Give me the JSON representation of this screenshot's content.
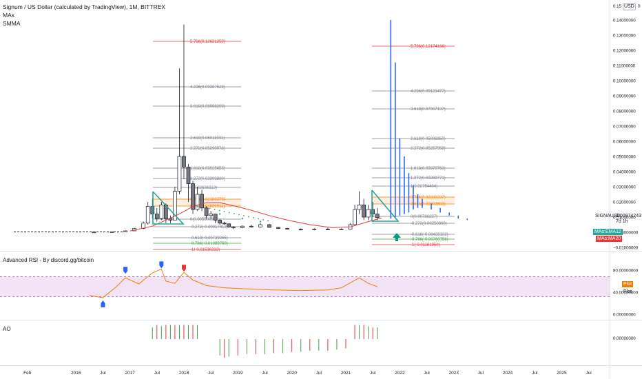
{
  "header": {
    "symbol_line": "Signum / US Dollar (calculated by TradingView), 1M, BITTREX",
    "indicators": [
      "MAs",
      "SMMA"
    ],
    "currency_badge": "USD"
  },
  "price_axis": {
    "top_partial": "0.15",
    "top_suffix": "0",
    "ticks": [
      "0.14000000",
      "0.13000000",
      "0.12000000",
      "0.11000000",
      "0.10000000",
      "0.09000000",
      "0.08000000",
      "0.07000000",
      "0.06000000",
      "0.05000000",
      "0.04000000",
      "0.03000000",
      "0.02000000",
      "0.01000000",
      "−0.00000000",
      "−0.01000000"
    ],
    "symbol_tag": "SIGNAUSD",
    "last_price": "0.00974243",
    "countdown": "7d 1h",
    "ema_tag": "MAs:EMA12",
    "ma_tag": "MAs:MA20"
  },
  "fib_left": {
    "levels": [
      {
        "label": "5.786(0.12621259)",
        "color": "#e53935"
      },
      {
        "label": "4.236(0.09387528)",
        "color": "#787b86"
      },
      {
        "label": "3.618(0.08098209)",
        "color": "#787b86"
      },
      {
        "label": "2.618(0.06011931)",
        "color": "#787b86"
      },
      {
        "label": "2.272(0.05290078)",
        "color": "#787b86"
      },
      {
        "label": "1.618(0.03925653)",
        "color": "#787b86"
      },
      {
        "label": "1.272(0.03203800)",
        "color": "#787b86"
      },
      {
        "label": "1(0.02636313)",
        "color": "#787b86"
      },
      {
        "label": "0.786(0.02190375)",
        "color": "#f57c00"
      },
      {
        "label": "0.618(0.01839911)",
        "color": "#f57c00"
      },
      {
        "label": "0(0.00550095)",
        "color": "#787b86"
      },
      {
        "label": "-0.272(-0.00017413)",
        "color": "#787b86"
      },
      {
        "label": "-0.618(-0.00739265)",
        "color": "#787b86"
      },
      {
        "label": "-0.786(-0.01089760)",
        "color": "#43a047"
      },
      {
        "label": "-1(-0.01536233)",
        "color": "#e53935"
      }
    ]
  },
  "fib_right": {
    "levels": [
      {
        "label": "5.786(0.12174166)",
        "color": "#e53935"
      },
      {
        "label": "4.236(0.09123477)",
        "color": "#787b86"
      },
      {
        "label": "3.618(0.07907137)",
        "color": "#787b86"
      },
      {
        "label": "2.618(0.05938950)",
        "color": "#787b86"
      },
      {
        "label": "2.272(0.05257958)",
        "color": "#787b86"
      },
      {
        "label": "1.618(0.03970763)",
        "color": "#787b86"
      },
      {
        "label": "1.272(0.03289771)",
        "color": "#787b86"
      },
      {
        "label": "1(0.02754404)",
        "color": "#787b86"
      },
      {
        "label": "0.786(0.02333237)",
        "color": "#f57c00"
      },
      {
        "label": "0.618(0.02002583)",
        "color": "#f57c00"
      },
      {
        "label": "0(0.00786237)",
        "color": "#787b86"
      },
      {
        "label": "-0.272(0.00250890)",
        "color": "#787b86"
      },
      {
        "label": "-0.618(-0.00430102)",
        "color": "#787b86"
      },
      {
        "label": "-0.786(-0.00760756)",
        "color": "#43a047"
      },
      {
        "label": "-1(-0.01181950)",
        "color": "#e53935"
      }
    ]
  },
  "rsi_pane": {
    "title": "Advanced RSI - By discord.gg/bitcoin",
    "ticks": [
      "80.00000000",
      "40.00000000",
      "0.00000000"
    ],
    "plot_tag": "Plot",
    "plot_label": "Plot",
    "band_color": "#e1bee7"
  },
  "ao_pane": {
    "title": "AO",
    "ticks": [
      "0.00000000"
    ]
  },
  "time_axis": {
    "labels": [
      "Feb",
      "2016",
      "Jul",
      "2017",
      "Jul",
      "2018",
      "Jul",
      "2019",
      "Jul",
      "2020",
      "Jul",
      "2021",
      "Jul",
      "2022",
      "Jul",
      "2023",
      "Jul",
      "2024",
      "Jul",
      "2025",
      "Jul"
    ]
  },
  "colors": {
    "up": "#ffffff",
    "down": "#787b86",
    "ma": "#e53935",
    "ema": "#26a69a",
    "blue": "#2962ff",
    "rsi": "#f57c00",
    "ao_up": "#43a047",
    "ao_down": "#e53935"
  },
  "chart_data": {
    "type": "candlestick",
    "title": "Signum / US Dollar (calculated by TradingView), 1M, BITTREX",
    "xlabel": "",
    "ylabel": "USD",
    "ylim": [
      -0.012,
      0.15
    ],
    "x_ticks": [
      "Feb",
      "2016",
      "Jul",
      "2017",
      "Jul",
      "2018",
      "Jul",
      "2019",
      "Jul",
      "2020",
      "Jul",
      "2021",
      "Jul",
      "2022",
      "Jul",
      "2023",
      "Jul",
      "2024",
      "Jul",
      "2025",
      "Jul"
    ],
    "candles": [
      {
        "t": "2016-05",
        "o": 0.0001,
        "h": 0.0002,
        "l": 0.0001,
        "c": 0.0001
      },
      {
        "t": "2016-09",
        "o": 0.0001,
        "h": 0.0005,
        "l": 0.0001,
        "c": 0.0003
      },
      {
        "t": "2016-12",
        "o": 0.0003,
        "h": 0.0012,
        "l": 0.0002,
        "c": 0.0009
      },
      {
        "t": "2017-02",
        "o": 0.0009,
        "h": 0.003,
        "l": 0.0008,
        "c": 0.0025
      },
      {
        "t": "2017-04",
        "o": 0.0025,
        "h": 0.007,
        "l": 0.002,
        "c": 0.006
      },
      {
        "t": "2017-05",
        "o": 0.006,
        "h": 0.02,
        "l": 0.005,
        "c": 0.017
      },
      {
        "t": "2017-06",
        "o": 0.017,
        "h": 0.022,
        "l": 0.009,
        "c": 0.012
      },
      {
        "t": "2017-07",
        "o": 0.012,
        "h": 0.016,
        "l": 0.007,
        "c": 0.009
      },
      {
        "t": "2017-08",
        "o": 0.009,
        "h": 0.02,
        "l": 0.008,
        "c": 0.018
      },
      {
        "t": "2017-09",
        "o": 0.018,
        "h": 0.019,
        "l": 0.006,
        "c": 0.009
      },
      {
        "t": "2017-10",
        "o": 0.009,
        "h": 0.011,
        "l": 0.006,
        "c": 0.008
      },
      {
        "t": "2017-11",
        "o": 0.008,
        "h": 0.03,
        "l": 0.008,
        "c": 0.027
      },
      {
        "t": "2017-12",
        "o": 0.027,
        "h": 0.108,
        "l": 0.025,
        "c": 0.05
      },
      {
        "t": "2018-01",
        "o": 0.05,
        "h": 0.137,
        "l": 0.035,
        "c": 0.043
      },
      {
        "t": "2018-02",
        "o": 0.043,
        "h": 0.045,
        "l": 0.02,
        "c": 0.032
      },
      {
        "t": "2018-03",
        "o": 0.032,
        "h": 0.034,
        "l": 0.012,
        "c": 0.015
      },
      {
        "t": "2018-04",
        "o": 0.015,
        "h": 0.03,
        "l": 0.014,
        "c": 0.025
      },
      {
        "t": "2018-05",
        "o": 0.025,
        "h": 0.028,
        "l": 0.014,
        "c": 0.016
      },
      {
        "t": "2018-06",
        "o": 0.016,
        "h": 0.017,
        "l": 0.009,
        "c": 0.011
      },
      {
        "t": "2018-07",
        "o": 0.011,
        "h": 0.014,
        "l": 0.009,
        "c": 0.012
      },
      {
        "t": "2018-08",
        "o": 0.012,
        "h": 0.012,
        "l": 0.006,
        "c": 0.008
      },
      {
        "t": "2018-09",
        "o": 0.008,
        "h": 0.009,
        "l": 0.005,
        "c": 0.006
      },
      {
        "t": "2018-10",
        "o": 0.006,
        "h": 0.007,
        "l": 0.005,
        "c": 0.0055
      },
      {
        "t": "2018-11",
        "o": 0.0055,
        "h": 0.006,
        "l": 0.003,
        "c": 0.0035
      },
      {
        "t": "2018-12",
        "o": 0.0035,
        "h": 0.004,
        "l": 0.002,
        "c": 0.003
      },
      {
        "t": "2019-02",
        "o": 0.003,
        "h": 0.0045,
        "l": 0.0025,
        "c": 0.004
      },
      {
        "t": "2019-04",
        "o": 0.004,
        "h": 0.005,
        "l": 0.003,
        "c": 0.0035
      },
      {
        "t": "2019-06",
        "o": 0.0035,
        "h": 0.006,
        "l": 0.003,
        "c": 0.005
      },
      {
        "t": "2019-08",
        "o": 0.005,
        "h": 0.0055,
        "l": 0.003,
        "c": 0.0032
      },
      {
        "t": "2019-10",
        "o": 0.0032,
        "h": 0.0035,
        "l": 0.0022,
        "c": 0.0025
      },
      {
        "t": "2019-12",
        "o": 0.0025,
        "h": 0.003,
        "l": 0.0018,
        "c": 0.002
      },
      {
        "t": "2020-03",
        "o": 0.002,
        "h": 0.0025,
        "l": 0.0012,
        "c": 0.0015
      },
      {
        "t": "2020-06",
        "o": 0.0015,
        "h": 0.0025,
        "l": 0.0013,
        "c": 0.002
      },
      {
        "t": "2020-09",
        "o": 0.002,
        "h": 0.003,
        "l": 0.0016,
        "c": 0.0018
      },
      {
        "t": "2020-12",
        "o": 0.0018,
        "h": 0.0025,
        "l": 0.0015,
        "c": 0.002
      },
      {
        "t": "2021-02",
        "o": 0.002,
        "h": 0.006,
        "l": 0.0018,
        "c": 0.005
      },
      {
        "t": "2021-03",
        "o": 0.005,
        "h": 0.018,
        "l": 0.0045,
        "c": 0.015
      },
      {
        "t": "2021-04",
        "o": 0.015,
        "h": 0.027,
        "l": 0.012,
        "c": 0.018
      },
      {
        "t": "2021-05",
        "o": 0.018,
        "h": 0.022,
        "l": 0.008,
        "c": 0.01
      },
      {
        "t": "2021-06",
        "o": 0.01,
        "h": 0.018,
        "l": 0.008,
        "c": 0.015
      },
      {
        "t": "2021-07",
        "o": 0.015,
        "h": 0.02,
        "l": 0.01,
        "c": 0.012
      },
      {
        "t": "2021-08",
        "o": 0.012,
        "h": 0.016,
        "l": 0.008,
        "c": 0.0097
      }
    ],
    "projection": {
      "name": "",
      "points": [
        {
          "t": "2021-11",
          "h": 0.14,
          "l": 0.009
        },
        {
          "t": "2021-12",
          "h": 0.112,
          "l": 0.01
        },
        {
          "t": "2022-01",
          "h": 0.062,
          "l": 0.011
        },
        {
          "t": "2022-02",
          "h": 0.05,
          "l": 0.012
        },
        {
          "t": "2022-03",
          "h": 0.039,
          "l": 0.013
        },
        {
          "t": "2022-04",
          "h": 0.031,
          "l": 0.015
        },
        {
          "t": "2022-05",
          "h": 0.025,
          "l": 0.016
        },
        {
          "t": "2022-06",
          "h": 0.022,
          "l": 0.016
        },
        {
          "t": "2022-08",
          "h": 0.019,
          "l": 0.015
        },
        {
          "t": "2022-10",
          "h": 0.016,
          "l": 0.013
        },
        {
          "t": "2022-12",
          "h": 0.013,
          "l": 0.011
        },
        {
          "t": "2023-02",
          "h": 0.011,
          "l": 0.009
        },
        {
          "t": "2023-04",
          "h": 0.009,
          "l": 0.008
        }
      ]
    },
    "ma20": [
      {
        "t": "2017-01",
        "v": 0.0008
      },
      {
        "t": "2017-06",
        "v": 0.004
      },
      {
        "t": "2017-12",
        "v": 0.012
      },
      {
        "t": "2018-03",
        "v": 0.017
      },
      {
        "t": "2018-06",
        "v": 0.0195
      },
      {
        "t": "2018-09",
        "v": 0.0195
      },
      {
        "t": "2018-12",
        "v": 0.0175
      },
      {
        "t": "2019-04",
        "v": 0.0145
      },
      {
        "t": "2019-08",
        "v": 0.011
      },
      {
        "t": "2019-12",
        "v": 0.008
      },
      {
        "t": "2020-05",
        "v": 0.005
      },
      {
        "t": "2020-10",
        "v": 0.003
      },
      {
        "t": "2021-02",
        "v": 0.0035
      },
      {
        "t": "2021-06",
        "v": 0.007
      },
      {
        "t": "2021-09",
        "v": 0.0095
      }
    ],
    "rsi": {
      "ylim": [
        0,
        100
      ],
      "band": [
        32,
        68
      ],
      "values": [
        {
          "t": "2016-04",
          "v": 34
        },
        {
          "t": "2016-07",
          "v": 30
        },
        {
          "t": "2016-10",
          "v": 50
        },
        {
          "t": "2016-12",
          "v": 66
        },
        {
          "t": "2017-03",
          "v": 55
        },
        {
          "t": "2017-06",
          "v": 75
        },
        {
          "t": "2017-08",
          "v": 82
        },
        {
          "t": "2017-09",
          "v": 60
        },
        {
          "t": "2017-11",
          "v": 56
        },
        {
          "t": "2018-01",
          "v": 76
        },
        {
          "t": "2018-03",
          "v": 62
        },
        {
          "t": "2018-06",
          "v": 52
        },
        {
          "t": "2018-10",
          "v": 48
        },
        {
          "t": "2019-03",
          "v": 46
        },
        {
          "t": "2019-09",
          "v": 44
        },
        {
          "t": "2020-03",
          "v": 43
        },
        {
          "t": "2020-09",
          "v": 44
        },
        {
          "t": "2020-12",
          "v": 48
        },
        {
          "t": "2021-04",
          "v": 66
        },
        {
          "t": "2021-06",
          "v": 56
        },
        {
          "t": "2021-08",
          "v": 50
        }
      ]
    },
    "ao": {
      "values": [
        {
          "t": "2017-06",
          "v": 0.01
        },
        {
          "t": "2017-07",
          "v": 0.012
        },
        {
          "t": "2017-08",
          "v": 0.011
        },
        {
          "t": "2017-09",
          "v": 0.012
        },
        {
          "t": "2017-10",
          "v": 0.012
        },
        {
          "t": "2017-11",
          "v": 0.012
        },
        {
          "t": "2017-12",
          "v": 0.012
        },
        {
          "t": "2018-01",
          "v": 0.012
        },
        {
          "t": "2018-02",
          "v": 0.012
        },
        {
          "t": "2018-03",
          "v": 0.012
        },
        {
          "t": "2018-04",
          "v": 0.012
        },
        {
          "t": "2018-09",
          "v": -0.014
        },
        {
          "t": "2018-10",
          "v": -0.016
        },
        {
          "t": "2018-11",
          "v": -0.015
        },
        {
          "t": "2019-01",
          "v": -0.014
        },
        {
          "t": "2019-03",
          "v": -0.013
        },
        {
          "t": "2019-05",
          "v": -0.013
        },
        {
          "t": "2019-07",
          "v": -0.013
        },
        {
          "t": "2019-09",
          "v": -0.012
        },
        {
          "t": "2019-11",
          "v": -0.012
        },
        {
          "t": "2020-01",
          "v": -0.011
        },
        {
          "t": "2020-03",
          "v": -0.011
        },
        {
          "t": "2020-05",
          "v": -0.01
        },
        {
          "t": "2020-07",
          "v": -0.01
        },
        {
          "t": "2020-09",
          "v": -0.01
        },
        {
          "t": "2020-11",
          "v": -0.009
        },
        {
          "t": "2021-01",
          "v": -0.008
        },
        {
          "t": "2021-03",
          "v": 0.012
        },
        {
          "t": "2021-04",
          "v": 0.012
        },
        {
          "t": "2021-05",
          "v": 0.012
        },
        {
          "t": "2021-06",
          "v": 0.011
        },
        {
          "t": "2021-07",
          "v": 0.01
        },
        {
          "t": "2021-08",
          "v": 0.01
        }
      ]
    }
  }
}
